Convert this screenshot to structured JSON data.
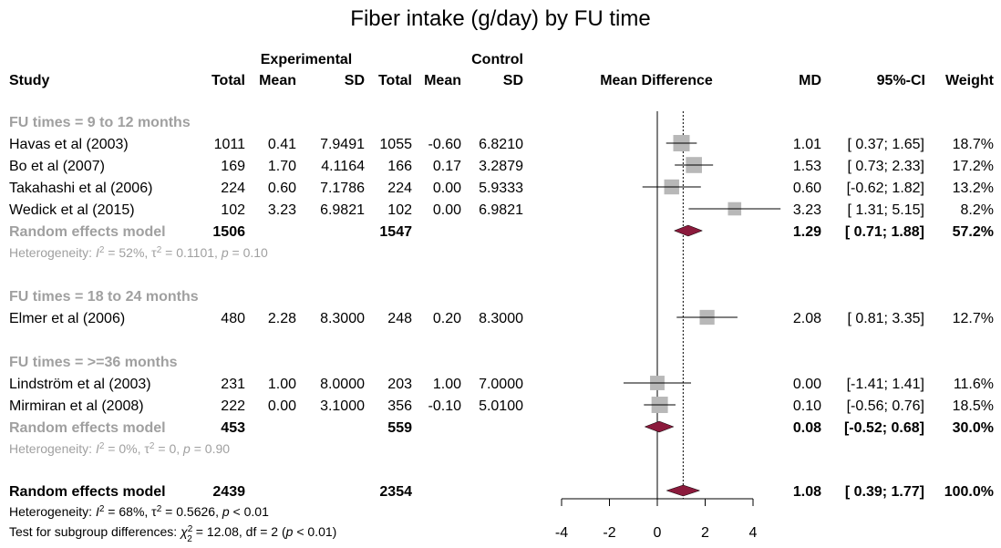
{
  "chart_data": {
    "type": "forest",
    "title": "Fiber intake (g/day) by FU time",
    "headers": {
      "experimental": "Experimental",
      "control": "Control",
      "study": "Study",
      "total": "Total",
      "mean": "Mean",
      "sd": "SD",
      "plot": "Mean Difference",
      "md": "MD",
      "ci": "95%-CI",
      "weight": "Weight"
    },
    "xaxis": {
      "ticks": [
        -4,
        -2,
        0,
        2,
        4
      ],
      "min": -4,
      "max": 4,
      "null_line": 0,
      "overall_line": 1.08
    },
    "subgroups": [
      {
        "label": "FU times = 9 to 12 months",
        "studies": [
          {
            "study": "Havas et al (2003)",
            "e_total": "1011",
            "e_mean": "0.41",
            "e_sd": "7.9491",
            "c_total": "1055",
            "c_mean": "-0.60",
            "c_sd": "6.8210",
            "md": 1.01,
            "lower": 0.37,
            "upper": 1.65,
            "md_text": "1.01",
            "ci_text": "[ 0.37; 1.65]",
            "weight": "18.7%",
            "weight_value": 18.7
          },
          {
            "study": "Bo et al (2007)",
            "e_total": "169",
            "e_mean": "1.70",
            "e_sd": "4.1164",
            "c_total": "166",
            "c_mean": "0.17",
            "c_sd": "3.2879",
            "md": 1.53,
            "lower": 0.73,
            "upper": 2.33,
            "md_text": "1.53",
            "ci_text": "[ 0.73; 2.33]",
            "weight": "17.2%",
            "weight_value": 17.2
          },
          {
            "study": "Takahashi et al (2006)",
            "e_total": "224",
            "e_mean": "0.60",
            "e_sd": "7.1786",
            "c_total": "224",
            "c_mean": "0.00",
            "c_sd": "5.9333",
            "md": 0.6,
            "lower": -0.62,
            "upper": 1.82,
            "md_text": "0.60",
            "ci_text": "[-0.62; 1.82]",
            "weight": "13.2%",
            "weight_value": 13.2
          },
          {
            "study": "Wedick et al (2015)",
            "e_total": "102",
            "e_mean": "3.23",
            "e_sd": "6.9821",
            "c_total": "102",
            "c_mean": "0.00",
            "c_sd": "6.9821",
            "md": 3.23,
            "lower": 1.31,
            "upper": 5.15,
            "md_text": "3.23",
            "ci_text": "[ 1.31; 5.15]",
            "weight": "8.2%",
            "weight_value": 8.2
          }
        ],
        "model": {
          "label": "Random effects model",
          "e_total": "1506",
          "c_total": "1547",
          "md": 1.29,
          "lower": 0.71,
          "upper": 1.88,
          "md_text": "1.29",
          "ci_text": "[ 0.71; 1.88]",
          "weight": "57.2%"
        },
        "heterogeneity": {
          "prefix": "Heterogeneity: ",
          "i2": "52%",
          "tau2": "0.1101",
          "p": "0.10",
          "p_op": " = "
        }
      },
      {
        "label": "FU times = 18 to 24 months",
        "studies": [
          {
            "study": "Elmer et al (2006)",
            "e_total": "480",
            "e_mean": "2.28",
            "e_sd": "8.3000",
            "c_total": "248",
            "c_mean": "0.20",
            "c_sd": "8.3000",
            "md": 2.08,
            "lower": 0.81,
            "upper": 3.35,
            "md_text": "2.08",
            "ci_text": "[ 0.81; 3.35]",
            "weight": "12.7%",
            "weight_value": 12.7
          }
        ]
      },
      {
        "label": "FU times = >=36 months",
        "studies": [
          {
            "study": "Lindström et al (2003)",
            "e_total": "231",
            "e_mean": "1.00",
            "e_sd": "8.0000",
            "c_total": "203",
            "c_mean": "1.00",
            "c_sd": "7.0000",
            "md": 0.0,
            "lower": -1.41,
            "upper": 1.41,
            "md_text": "0.00",
            "ci_text": "[-1.41; 1.41]",
            "weight": "11.6%",
            "weight_value": 11.6
          },
          {
            "study": "Mirmiran et al (2008)",
            "e_total": "222",
            "e_mean": "0.00",
            "e_sd": "3.1000",
            "c_total": "356",
            "c_mean": "-0.10",
            "c_sd": "5.0100",
            "md": 0.1,
            "lower": -0.56,
            "upper": 0.76,
            "md_text": "0.10",
            "ci_text": "[-0.56; 0.76]",
            "weight": "18.5%",
            "weight_value": 18.5
          }
        ],
        "model": {
          "label": "Random effects model",
          "e_total": "453",
          "c_total": "559",
          "md": 0.08,
          "lower": -0.52,
          "upper": 0.68,
          "md_text": "0.08",
          "ci_text": "[-0.52; 0.68]",
          "weight": "30.0%"
        },
        "heterogeneity": {
          "prefix": "Heterogeneity: ",
          "i2": "0%",
          "tau2": "0",
          "p": "0.90",
          "p_op": " = "
        }
      }
    ],
    "overall": {
      "label": "Random effects model",
      "e_total": "2439",
      "c_total": "2354",
      "md": 1.08,
      "lower": 0.39,
      "upper": 1.77,
      "md_text": "1.08",
      "ci_text": "[ 0.39; 1.77]",
      "weight": "100.0%",
      "heterogeneity": {
        "prefix": "Heterogeneity: ",
        "i2": "68%",
        "tau2": "0.5626",
        "p": "0.01",
        "p_op": " < "
      },
      "subgroup_test": {
        "prefix": "Test for subgroup differences: ",
        "chi2": "12.08",
        "df": "2",
        "p": "0.01",
        "p_op": " < "
      }
    },
    "colors": {
      "square": "#b8b8b8",
      "diamond": "#8b1a3c",
      "subgroup_text": "#a0a0a0",
      "text": "#000000"
    }
  }
}
